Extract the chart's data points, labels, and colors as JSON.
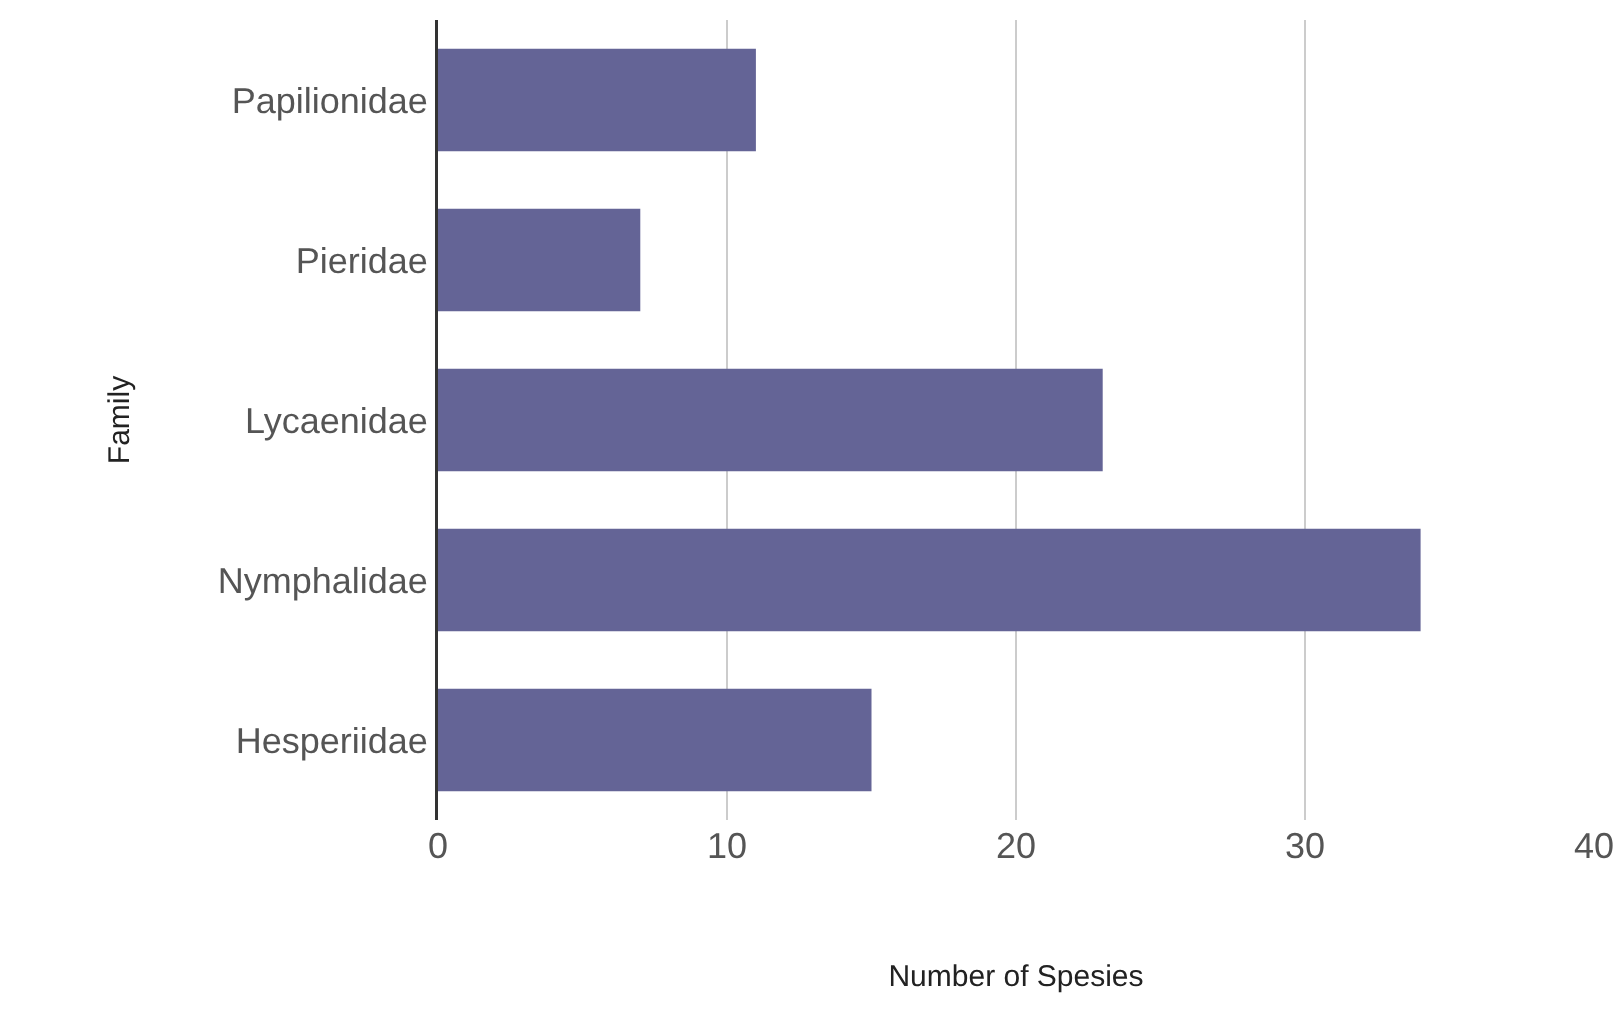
{
  "chart_data": {
    "type": "bar",
    "orientation": "horizontal",
    "xlabel": "Number of Spesies",
    "ylabel": "Family",
    "categories": [
      "Papilionidae",
      "Pieridae",
      "Lycaenidae",
      "Nymphalidae",
      "Hesperiidae"
    ],
    "values": [
      11,
      7,
      23,
      34,
      15
    ],
    "color": "#646496",
    "xlim": [
      0,
      40
    ],
    "xticks": [
      0,
      10,
      20,
      30,
      40
    ],
    "grid": "x",
    "legend": false
  }
}
